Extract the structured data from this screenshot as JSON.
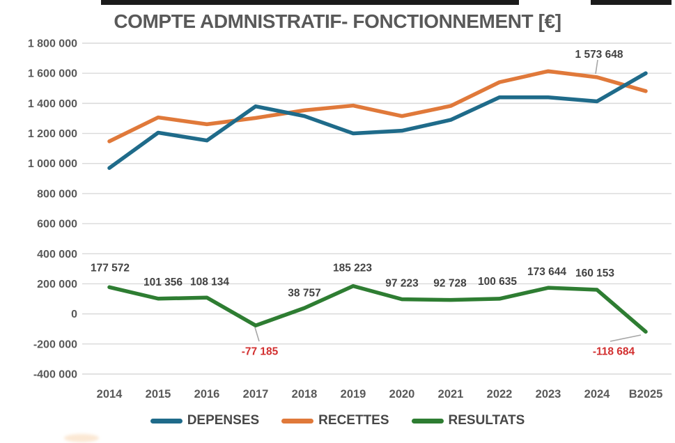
{
  "chart_data": {
    "type": "line",
    "title": "COMPTE ADMNISTRATIF- FONCTIONNEMENT [€]",
    "categories": [
      "2014",
      "2015",
      "2016",
      "2017",
      "2018",
      "2019",
      "2020",
      "2021",
      "2022",
      "2023",
      "2024",
      "B2025"
    ],
    "series": [
      {
        "name": "DEPENSES",
        "color": "#1f6b8a",
        "values": [
          970000,
          1205000,
          1153000,
          1380000,
          1315000,
          1200000,
          1218000,
          1290000,
          1440000,
          1440000,
          1413495,
          1600000
        ],
        "labels": [
          null,
          null,
          null,
          null,
          null,
          null,
          null,
          null,
          null,
          null,
          null,
          null
        ]
      },
      {
        "name": "RECETTES",
        "color": "#e0793a",
        "values": [
          1147572,
          1306356,
          1261134,
          1302815,
          1353757,
          1385223,
          1315223,
          1382728,
          1540635,
          1613644,
          1573648,
          1481316
        ],
        "labels": [
          null,
          null,
          null,
          null,
          null,
          null,
          null,
          null,
          null,
          null,
          "1 573 648",
          null
        ]
      },
      {
        "name": "RESULTATS",
        "color": "#2e7d32",
        "values": [
          177572,
          101356,
          108134,
          -77185,
          38757,
          185223,
          97223,
          92728,
          100635,
          173644,
          160153,
          -118684
        ],
        "labels": [
          "177 572",
          "101 356",
          "108 134",
          "-77 185",
          "38 757",
          "185 223",
          "97 223",
          "92 728",
          "100 635",
          "173 644",
          "160 153",
          "-118 684"
        ]
      }
    ],
    "y_axis": {
      "ticks": [
        "1 800 000",
        "1 600 000",
        "1 400 000",
        "1 200 000",
        "1 000 000",
        "800 000",
        "600 000",
        "400 000",
        "200 000",
        "0",
        "-200 000",
        "-400 000"
      ],
      "tick_values": [
        1800000,
        1600000,
        1400000,
        1200000,
        1000000,
        800000,
        600000,
        400000,
        200000,
        0,
        -200000,
        -400000
      ],
      "ylim": [
        -400000,
        1800000
      ]
    },
    "grid": "horizontal-only",
    "legend_position": "bottom",
    "colors": {
      "axis_label": "#595959",
      "data_label": "#424242",
      "negative_label": "#d22f2f",
      "gridline": "#d9d9d9",
      "leader_line": "#a6a6a6"
    }
  }
}
